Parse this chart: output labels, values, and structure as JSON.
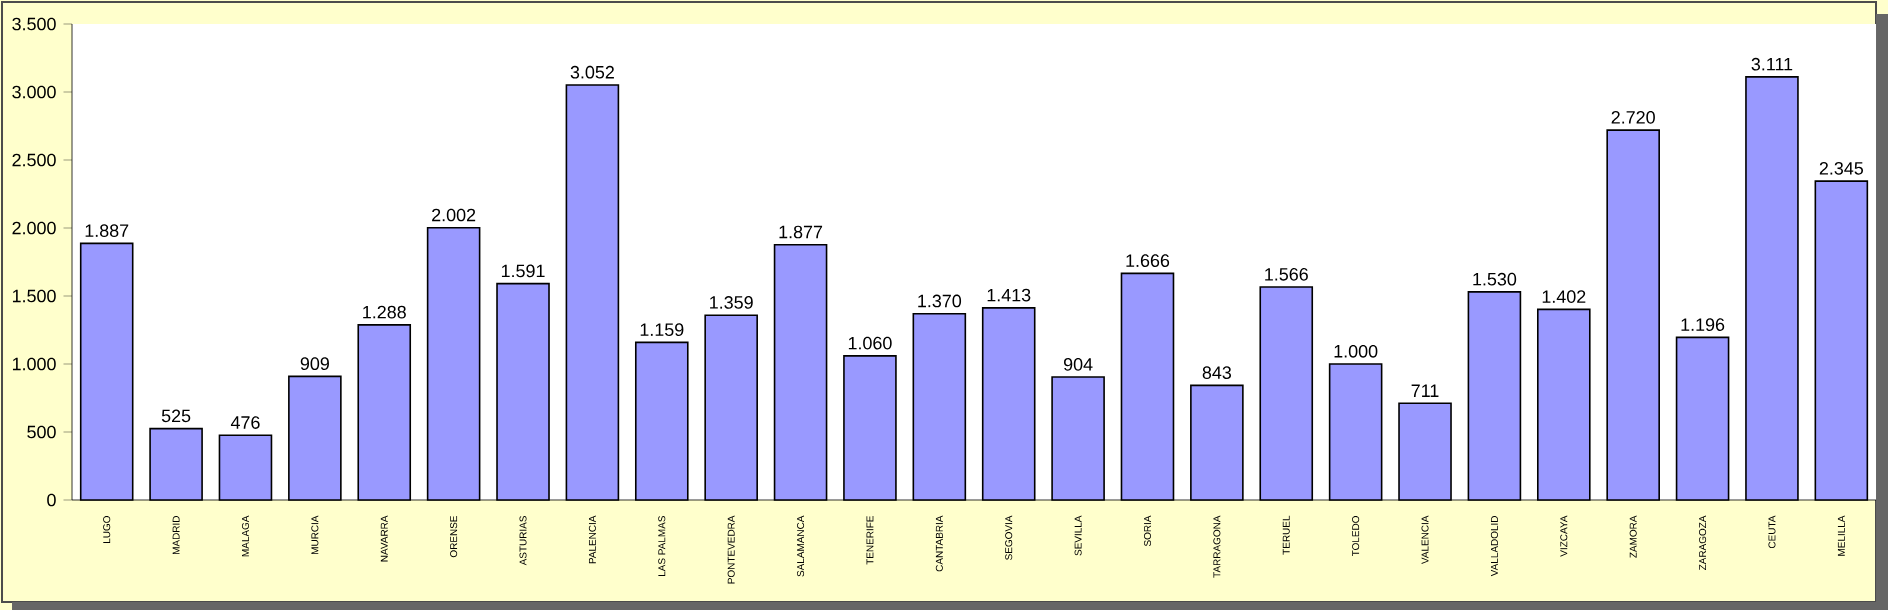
{
  "chart_data": {
    "type": "bar",
    "categories": [
      "LUGO",
      "MADRID",
      "MALAGA",
      "MURCIA",
      "NAVARRA",
      "ORENSE",
      "ASTURIAS",
      "PALENCIA",
      "LAS PALMAS",
      "PONTEVEDRA",
      "SALAMANCA",
      "TENERIFE",
      "CANTABRIA",
      "SEGOVIA",
      "SEVILLA",
      "SORIA",
      "TARRAGONA",
      "TERUEL",
      "TOLEDO",
      "VALENCIA",
      "VALLADOLID",
      "VIZCAYA",
      "ZAMORA",
      "ZARAGOZA",
      "CEUTA",
      "MELILLA"
    ],
    "values": [
      1887,
      525,
      476,
      909,
      1288,
      2002,
      1591,
      3052,
      1159,
      1359,
      1877,
      1060,
      1370,
      1413,
      904,
      1666,
      843,
      1566,
      1000,
      711,
      1530,
      1402,
      2720,
      1196,
      3111,
      2345
    ],
    "value_labels": [
      "1.887",
      "525",
      "476",
      "909",
      "1.288",
      "2.002",
      "1.591",
      "3.052",
      "1.159",
      "1.359",
      "1.877",
      "1.060",
      "1.370",
      "1.413",
      "904",
      "1.666",
      "843",
      "1.566",
      "1.000",
      "711",
      "1.530",
      "1.402",
      "2.720",
      "1.196",
      "3.111",
      "2.345"
    ],
    "color": "#9999ff",
    "ylim": [
      0,
      3500
    ],
    "yticks": [
      0,
      500,
      {
        "value": 1000,
        "label": "1.000"
      },
      {
        "value": 1500,
        "label": "1.500"
      },
      {
        "value": 2000,
        "label": "2.000"
      },
      {
        "value": 2500,
        "label": "2.500"
      },
      {
        "value": 3000,
        "label": "3.000"
      },
      {
        "value": 3500,
        "label": "3.500"
      }
    ],
    "grid": false
  }
}
